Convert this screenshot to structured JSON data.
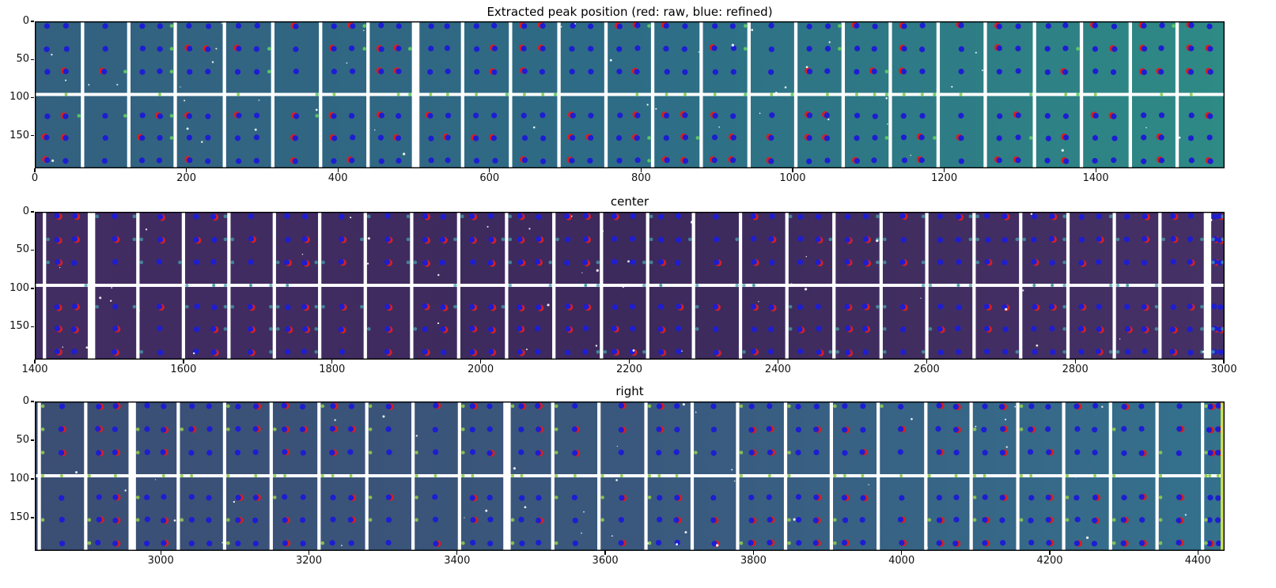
{
  "figure": {
    "background_color": "#ffffff",
    "frame_color": "#000000",
    "gap_color": "#ffffff"
  },
  "legend": {
    "raw_label": "red: raw",
    "refined_label": "blue: refined",
    "raw_color": "#d42020",
    "refined_color": "#1d1dd2"
  },
  "chart_data": [
    {
      "type": "heatmap",
      "panel": "left",
      "title": "Extracted peak position (red: raw, blue: refined)",
      "xlim": [
        0,
        1570
      ],
      "ylim": [
        193,
        0
      ],
      "xticks": [
        0,
        200,
        400,
        600,
        800,
        1000,
        1200,
        1400
      ],
      "yticks": [
        0,
        50,
        100,
        150
      ],
      "grid": false,
      "module_width": 63,
      "gap_width": 4.5,
      "first_gap_x": 63,
      "wide_gaps": [
        486,
        977,
        1528
      ],
      "hline_y": 96,
      "dot_rows": [
        6,
        36,
        66,
        124,
        153,
        183
      ],
      "two_col_p": 0.8,
      "bg_stops": [
        "#33617f",
        "#2e6c86",
        "#2e8a85"
      ],
      "blue_dot_color": "#1d1dd2",
      "red_dot_color": "#d42020",
      "red_fraction": 0.42,
      "red_offset": [
        -2.2,
        -0.9
      ],
      "accent_color": "#5fce63",
      "accent_sides": [
        "right"
      ],
      "accent_opacity": 0.9,
      "accent_row_p": 0.22,
      "accent_line_p": 0.55,
      "line_dot_p": 0.55,
      "line_dot_color": "#8fd45a",
      "right_strip_color": null,
      "speckles": 48,
      "seed": 7
    },
    {
      "type": "heatmap",
      "panel": "center",
      "title": "center",
      "xlim": [
        1400,
        3001
      ],
      "ylim": [
        193,
        0
      ],
      "xticks": [
        1400,
        1600,
        1800,
        2000,
        2200,
        2400,
        2600,
        2800,
        3000
      ],
      "yticks": [
        0,
        50,
        100,
        150
      ],
      "grid": false,
      "module_width": 63,
      "gap_width": 4.5,
      "first_gap_x": 1413,
      "wide_gaps": [
        1478,
        2513,
        2962
      ],
      "hline_y": 96,
      "dot_rows": [
        6,
        36,
        66,
        124,
        153,
        183
      ],
      "two_col_p": 0.6,
      "bg_stops": [
        "#422d63",
        "#3d2a5c",
        "#453165"
      ],
      "blue_dot_color": "#1d1dd2",
      "red_dot_color": "#d42020",
      "red_fraction": 0.5,
      "red_offset": [
        2.2,
        0.9
      ],
      "accent_color": "#46a0a8",
      "accent_sides": [
        "left",
        "right"
      ],
      "accent_opacity": 0.75,
      "accent_row_p": 0.42,
      "accent_line_p": 0.5,
      "line_dot_p": 0.25,
      "line_dot_color": "#4aa0a8",
      "right_strip_color": null,
      "speckles": 46,
      "seed": 13
    },
    {
      "type": "heatmap",
      "panel": "right",
      "title": "right",
      "xlim": [
        2830,
        4436
      ],
      "ylim": [
        193,
        0
      ],
      "xticks": [
        3000,
        3200,
        3400,
        3600,
        3800,
        4000,
        4200,
        4400
      ],
      "yticks": [
        0,
        50,
        100,
        150
      ],
      "grid": false,
      "module_width": 63,
      "gap_width": 4.5,
      "first_gap_x": 2836,
      "wide_gaps": [
        2954,
        3450,
        3947
      ],
      "hline_y": 96,
      "dot_rows": [
        6,
        36,
        66,
        124,
        153,
        183
      ],
      "two_col_p": 0.8,
      "bg_stops": [
        "#3b4e74",
        "#3a587d",
        "#34718d"
      ],
      "blue_dot_color": "#1d1dd2",
      "red_dot_color": "#d42020",
      "red_fraction": 0.45,
      "red_offset": [
        2.3,
        0.2
      ],
      "accent_color": "#8fc84e",
      "accent_sides": [
        "left"
      ],
      "accent_opacity": 0.9,
      "accent_row_p": 0.5,
      "accent_line_p": 0.7,
      "line_dot_p": 0.6,
      "line_dot_color": "#93cf52",
      "right_strip_color": "#cde04e",
      "speckles": 46,
      "seed": 21
    }
  ]
}
